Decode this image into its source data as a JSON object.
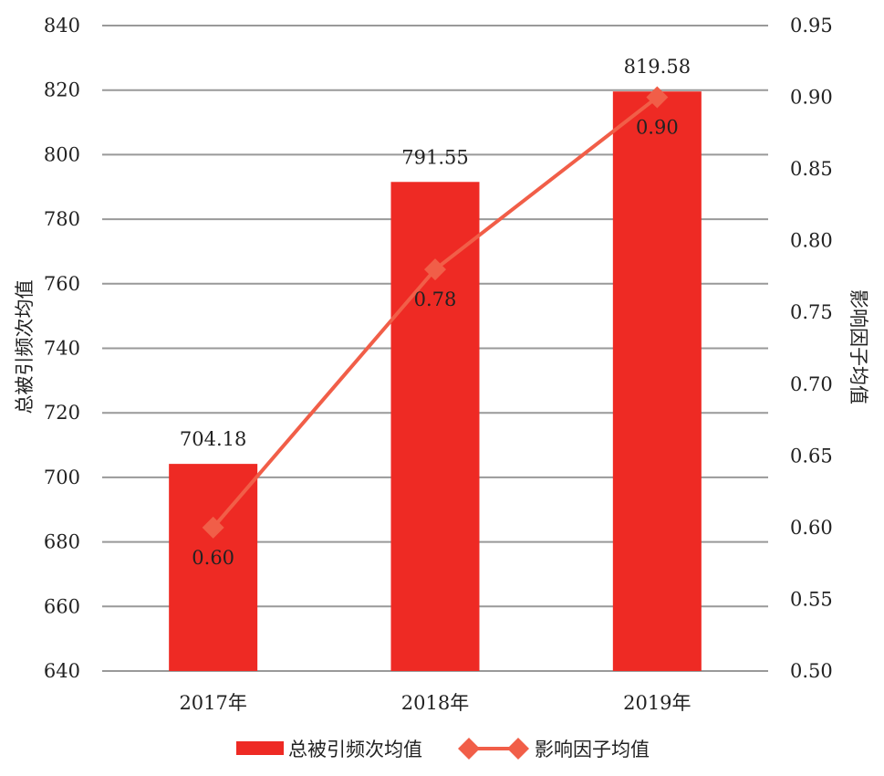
{
  "chart_data": {
    "type": "bar+line",
    "categories": [
      "2017年",
      "2018年",
      "2019年"
    ],
    "series": [
      {
        "name": "总被引频次均值",
        "type": "bar",
        "axis": "left",
        "values": [
          704.18,
          791.55,
          819.58
        ],
        "labels": [
          "704.18",
          "791.55",
          "819.58"
        ],
        "color": "#EE2A24"
      },
      {
        "name": "影响因子均值",
        "type": "line",
        "axis": "right",
        "marker": "diamond",
        "values": [
          0.6,
          0.78,
          0.9
        ],
        "labels": [
          "0.60",
          "0.78",
          "0.90"
        ],
        "color": "#F15E48"
      }
    ],
    "ylabel": "总被引频次均值",
    "y2label": "影响因子均值",
    "ylim": [
      640,
      840
    ],
    "y2lim": [
      0.5,
      0.95
    ],
    "yticks": [
      "640",
      "660",
      "680",
      "700",
      "720",
      "740",
      "760",
      "780",
      "800",
      "820",
      "840"
    ],
    "y2ticks": [
      "0.50",
      "0.55",
      "0.60",
      "0.65",
      "0.70",
      "0.75",
      "0.80",
      "0.85",
      "0.90",
      "0.95"
    ],
    "grid": true,
    "legend": "bottom"
  }
}
